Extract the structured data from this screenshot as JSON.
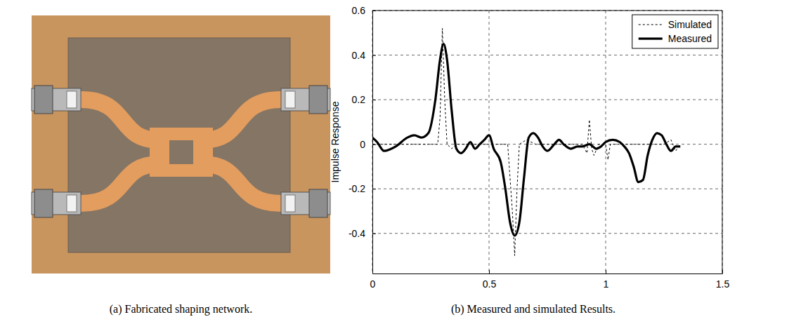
{
  "chart_data": {
    "type": "line",
    "y_label": "Impulse Response",
    "xlim": [
      0,
      1.5
    ],
    "xticks": [
      0,
      0.5,
      1,
      1.5
    ],
    "ylim": [
      -0.58,
      0.6
    ],
    "yticks": [
      -0.4,
      -0.2,
      0,
      0.2,
      0.4,
      0.6
    ],
    "grid": true,
    "legend": "upper right",
    "series": [
      {
        "name": "Simulated",
        "color": "#000000",
        "line_style": "dashed",
        "x": [
          0,
          0.28,
          0.29,
          0.3,
          0.31,
          0.32,
          0.34,
          0.36,
          0.4,
          0.5,
          0.58,
          0.6,
          0.61,
          0.62,
          0.63,
          0.66,
          0.7,
          0.8,
          0.9,
          0.92,
          0.93,
          0.94,
          0.95,
          0.97,
          1.0,
          1.01,
          1.02,
          1.05,
          1.1,
          1.2,
          1.25,
          1.28,
          1.3,
          1.32
        ],
        "values": [
          0,
          0,
          0.12,
          0.52,
          0.2,
          0,
          -0.02,
          0,
          0,
          0,
          0,
          -0.3,
          -0.5,
          -0.2,
          0,
          0.02,
          0,
          0,
          0,
          -0.04,
          0.11,
          -0.02,
          -0.05,
          0,
          0,
          -0.07,
          0,
          0,
          0,
          0,
          0,
          0.02,
          -0.03,
          0
        ]
      },
      {
        "name": "Measured",
        "color": "#000000",
        "line_style": "solid",
        "x": [
          0,
          0.02,
          0.05,
          0.1,
          0.15,
          0.18,
          0.21,
          0.24,
          0.27,
          0.29,
          0.305,
          0.32,
          0.34,
          0.36,
          0.38,
          0.4,
          0.42,
          0.44,
          0.46,
          0.48,
          0.5,
          0.52,
          0.55,
          0.57,
          0.59,
          0.61,
          0.63,
          0.65,
          0.67,
          0.69,
          0.71,
          0.73,
          0.75,
          0.78,
          0.8,
          0.82,
          0.85,
          0.88,
          0.9,
          0.93,
          0.96,
          0.98,
          1.0,
          1.03,
          1.06,
          1.08,
          1.1,
          1.12,
          1.14,
          1.16,
          1.18,
          1.2,
          1.22,
          1.24,
          1.26,
          1.28,
          1.3,
          1.32
        ],
        "values": [
          0.03,
          0.01,
          -0.03,
          -0.01,
          0.03,
          0.04,
          0.03,
          0.05,
          0.2,
          0.38,
          0.45,
          0.38,
          0.15,
          -0.02,
          -0.04,
          -0.02,
          0.01,
          -0.02,
          0,
          0.02,
          0.04,
          -0.02,
          -0.08,
          -0.2,
          -0.35,
          -0.41,
          -0.35,
          -0.15,
          0.03,
          0.05,
          0.03,
          -0.01,
          -0.03,
          0,
          0.02,
          0,
          -0.02,
          -0.01,
          -0.01,
          0,
          -0.02,
          -0.01,
          0.01,
          0.02,
          0.01,
          -0.01,
          -0.04,
          -0.1,
          -0.17,
          -0.16,
          -0.05,
          0.02,
          0.05,
          0.04,
          0,
          -0.03,
          -0.01,
          -0.01
        ]
      }
    ]
  },
  "captions": [
    "(a) Fabricated shaping network.",
    "(b) Measured and simulated Results."
  ]
}
